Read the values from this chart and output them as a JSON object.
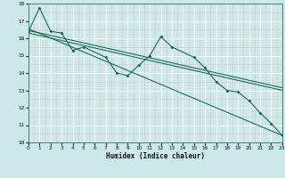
{
  "xlabel": "Humidex (Indice chaleur)",
  "bg_color": "#cce8e8",
  "grid_color_major": "#ffffff",
  "grid_color_minor": "#e8c0c0",
  "line_color": "#1a6b5a",
  "xlim": [
    0,
    23
  ],
  "ylim": [
    10,
    18
  ],
  "series_x": [
    0,
    1,
    2,
    3,
    4,
    5,
    7,
    8,
    9,
    10,
    11,
    12,
    13,
    15,
    16,
    17,
    18,
    19,
    20,
    21,
    22,
    23
  ],
  "series_y": [
    16.4,
    17.75,
    16.4,
    16.3,
    15.3,
    15.5,
    14.9,
    14.0,
    13.85,
    14.45,
    15.0,
    16.1,
    15.5,
    14.9,
    14.3,
    13.5,
    13.0,
    12.9,
    12.4,
    11.7,
    11.1,
    10.4
  ],
  "trend1_x": [
    0,
    23
  ],
  "trend1_y": [
    16.55,
    10.4
  ],
  "trend2_x": [
    0,
    23
  ],
  "trend2_y": [
    16.3,
    13.0
  ],
  "trend3_x": [
    0,
    23
  ],
  "trend3_y": [
    16.45,
    13.15
  ],
  "yticks": [
    10,
    11,
    12,
    13,
    14,
    15,
    16,
    17,
    18
  ],
  "xticks": [
    0,
    1,
    2,
    3,
    4,
    5,
    6,
    7,
    8,
    9,
    10,
    11,
    12,
    13,
    14,
    15,
    16,
    17,
    18,
    19,
    20,
    21,
    22,
    23
  ],
  "xtick_labels": [
    "0",
    "1",
    "2",
    "3",
    "4",
    "5",
    "6",
    "7",
    "8",
    "9",
    "10",
    "11",
    "12",
    "13",
    "14",
    "15",
    "16",
    "17",
    "18",
    "19",
    "20",
    "21",
    "22",
    "23"
  ]
}
